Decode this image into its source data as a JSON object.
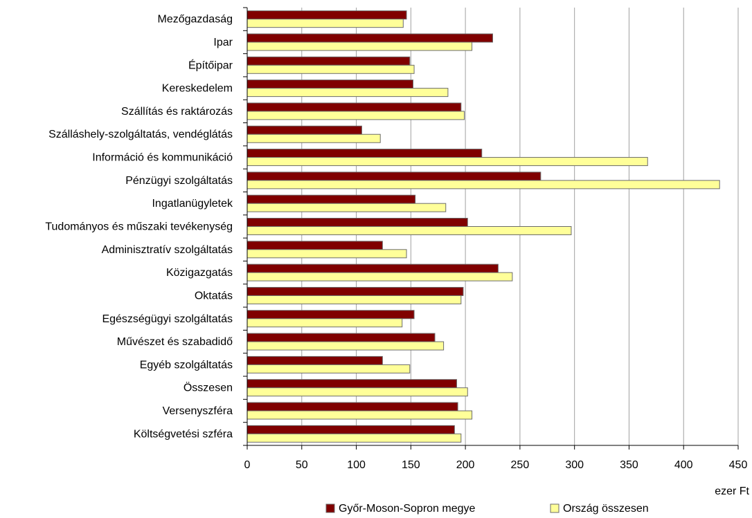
{
  "chart_data": {
    "type": "bar",
    "orientation": "horizontal",
    "title": "",
    "xlabel": "ezer Ft",
    "ylabel": "",
    "xlim": [
      0,
      450
    ],
    "xticks": [
      0,
      50,
      100,
      150,
      200,
      250,
      300,
      350,
      400,
      450
    ],
    "grid": true,
    "legend_position": "bottom",
    "categories": [
      "Mezőgazdaság",
      "Ipar",
      "Építőipar",
      "Kereskedelem",
      "Szállítás és raktározás",
      "Szálláshely-szolgáltatás, vendéglátás",
      "Információ és kommunikáció",
      "Pénzügyi szolgáltatás",
      "Ingatlanügyletek",
      "Tudományos és műszaki tevékenység",
      "Adminisztratív szolgáltatás",
      "Közigazgatás",
      "Oktatás",
      "Egészségügyi szolgáltatás",
      "Művészet és szabadidő",
      "Egyéb szolgáltatás",
      "Összesen",
      "Versenyszféra",
      "Költségvetési szféra"
    ],
    "series": [
      {
        "name": "Győr-Moson-Sopron megye",
        "color": "#800000",
        "values": [
          146,
          225,
          149,
          152,
          196,
          105,
          215,
          269,
          154,
          202,
          124,
          230,
          198,
          153,
          172,
          124,
          192,
          193,
          190
        ]
      },
      {
        "name": "Ország összesen",
        "color": "#ffff99",
        "values": [
          143,
          206,
          153,
          184,
          199,
          122,
          367,
          433,
          182,
          297,
          146,
          243,
          196,
          142,
          180,
          149,
          202,
          206,
          196
        ]
      }
    ]
  }
}
